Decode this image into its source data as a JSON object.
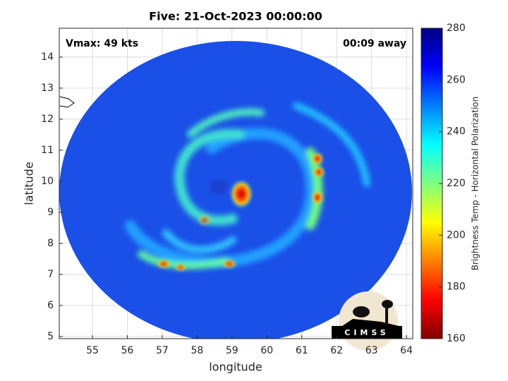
{
  "chart_data": {
    "type": "map",
    "title": "Five: 21-Oct-2023 00:00:00",
    "xlabel": "longitude",
    "ylabel": "latitude",
    "annotations": [
      "Vmax: 49 kts",
      "00:09 away"
    ],
    "logo": "CIMSS",
    "xlim": [
      54.05,
      64.18
    ],
    "xticks": [
      55,
      56,
      57,
      58,
      59,
      60,
      61,
      62,
      63,
      64
    ],
    "ylim": [
      4.93,
      14.93
    ],
    "yticks": [
      5,
      6,
      7,
      8,
      9,
      10,
      11,
      12,
      13,
      14
    ],
    "grid": true,
    "colorbar": {
      "label": "Brightness Temp - Horizontal Polarization",
      "clim": [
        160,
        280
      ],
      "ticks": [
        160,
        180,
        200,
        220,
        240,
        260,
        280
      ],
      "colormap": "jet"
    }
  }
}
